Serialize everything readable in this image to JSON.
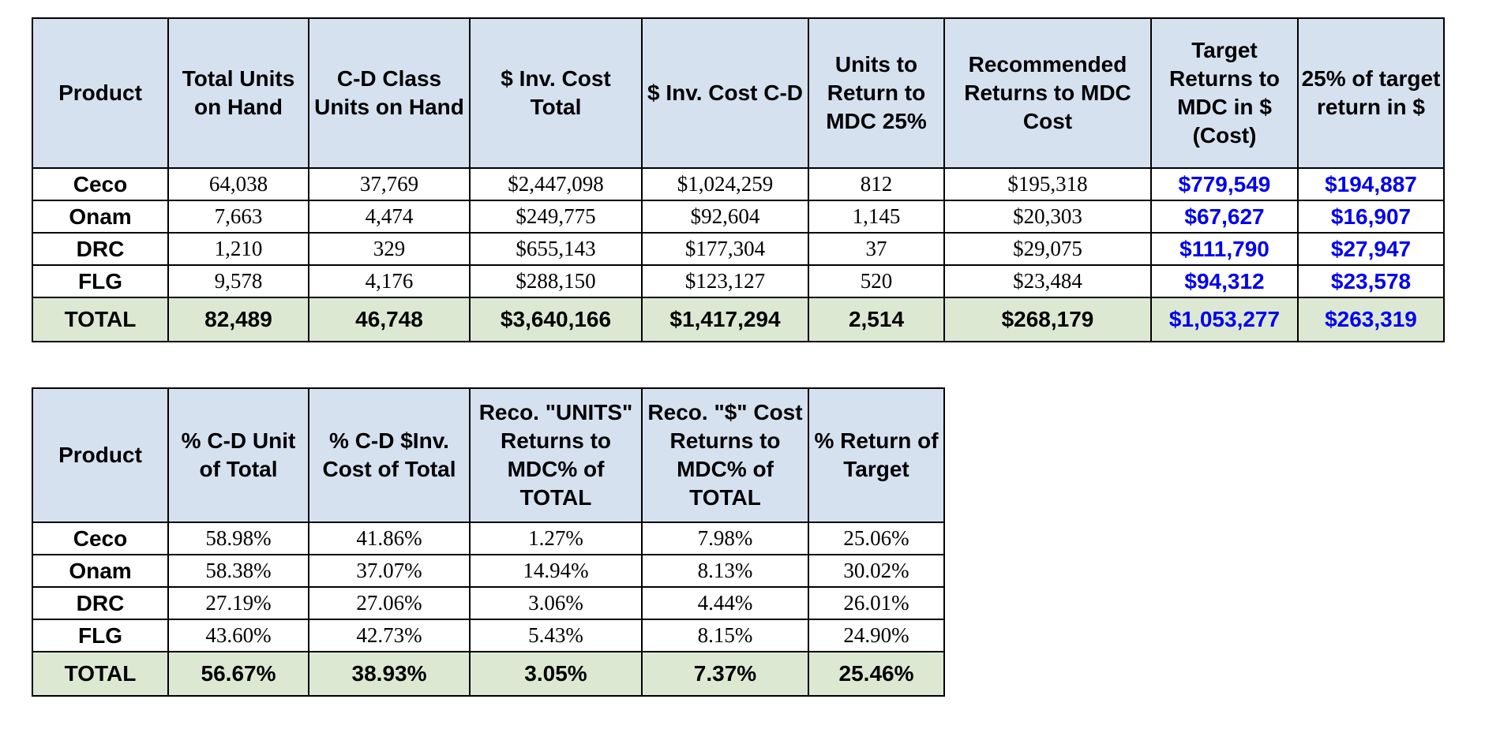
{
  "table1": {
    "headers": [
      "Product",
      "Total Units on Hand",
      "C-D Class Units on Hand",
      "$ Inv. Cost Total",
      "$ Inv. Cost C-D",
      "Units to Return to MDC 25%",
      "Recommended Returns to MDC Cost",
      "Target Returns to MDC in $ (Cost)",
      "25% of target return in $"
    ],
    "rows": [
      [
        "Ceco",
        "64,038",
        "37,769",
        "$2,447,098",
        "$1,024,259",
        "812",
        "$195,318",
        "$779,549",
        "$194,887"
      ],
      [
        "Onam",
        "7,663",
        "4,474",
        "$249,775",
        "$92,604",
        "1,145",
        "$20,303",
        "$67,627",
        "$16,907"
      ],
      [
        "DRC",
        "1,210",
        "329",
        "$655,143",
        "$177,304",
        "37",
        "$29,075",
        "$111,790",
        "$27,947"
      ],
      [
        "FLG",
        "9,578",
        "4,176",
        "$288,150",
        "$123,127",
        "520",
        "$23,484",
        "$94,312",
        "$23,578"
      ]
    ],
    "total": [
      "TOTAL",
      "82,489",
      "46,748",
      "$3,640,166",
      "$1,417,294",
      "2,514",
      "$268,179",
      "$1,053,277",
      "$263,319"
    ]
  },
  "table2": {
    "headers": [
      "Product",
      "% C-D Unit of Total",
      "% C-D $Inv. Cost of Total",
      "Reco. \"UNITS\" Returns to MDC% of TOTAL",
      "Reco. \"$\" Cost Returns to MDC% of TOTAL",
      "% Return of Target"
    ],
    "rows": [
      [
        "Ceco",
        "58.98%",
        "41.86%",
        "1.27%",
        "7.98%",
        "25.06%"
      ],
      [
        "Onam",
        "58.38%",
        "37.07%",
        "14.94%",
        "8.13%",
        "30.02%"
      ],
      [
        "DRC",
        "27.19%",
        "27.06%",
        "3.06%",
        "4.44%",
        "26.01%"
      ],
      [
        "FLG",
        "43.60%",
        "42.73%",
        "5.43%",
        "8.15%",
        "24.90%"
      ]
    ],
    "total": [
      "TOTAL",
      "56.67%",
      "38.93%",
      "3.05%",
      "7.37%",
      "25.46%"
    ]
  },
  "colors": {
    "header_bg": "#d6e1f0",
    "total_bg": "#dde8d3",
    "highlight_text": "#0000ee"
  }
}
